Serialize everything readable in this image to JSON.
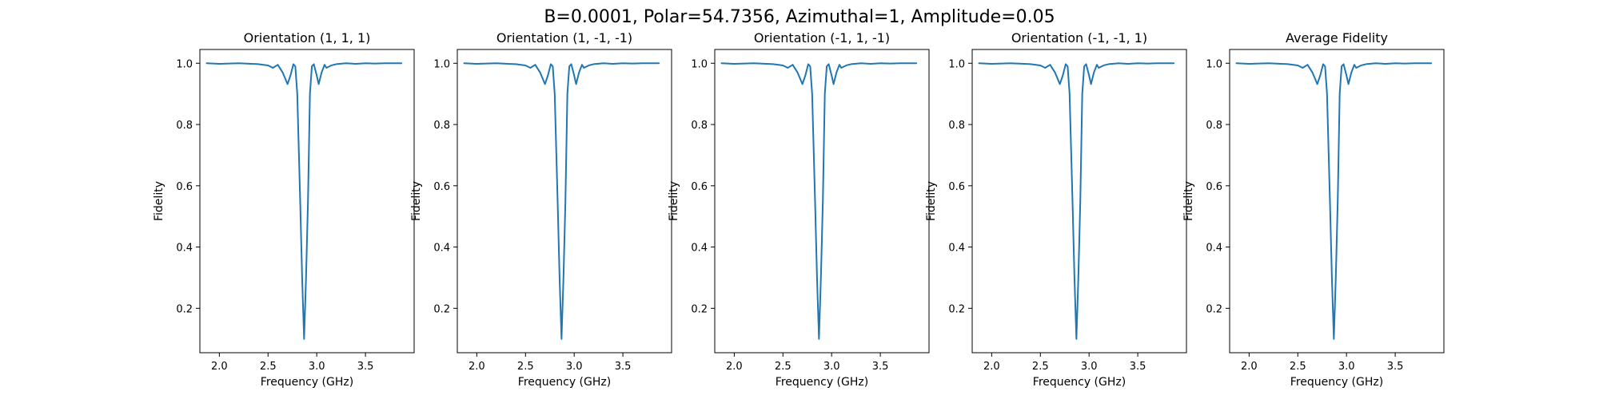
{
  "figure": {
    "suptitle": "B=0.0001, Polar=54.7356, Azimuthal=1, Amplitude=0.05"
  },
  "style": {
    "line_color": "#1f77b4",
    "axis_color": "#000000",
    "background": "#ffffff"
  },
  "chart_data": [
    {
      "type": "line",
      "title": "Orientation (1, 1, 1)",
      "xlabel": "Frequency (GHz)",
      "ylabel": "Fidelity",
      "xlim": [
        1.8,
        4.0
      ],
      "ylim": [
        0.055,
        1.045
      ],
      "xticks": [
        "2.0",
        "2.5",
        "3.0",
        "3.5"
      ],
      "yticks": [
        "0.2",
        "0.4",
        "0.6",
        "0.8",
        "1.0"
      ],
      "grid": false,
      "series": [
        {
          "x": [
            1.87,
            2.0,
            2.2,
            2.4,
            2.5,
            2.55,
            2.6,
            2.65,
            2.7,
            2.73,
            2.76,
            2.78,
            2.8,
            2.83,
            2.85,
            2.87,
            2.89,
            2.91,
            2.93,
            2.95,
            2.97,
            3.0,
            3.02,
            3.05,
            3.08,
            3.1,
            3.15,
            3.2,
            3.3,
            3.4,
            3.5,
            3.6,
            3.7,
            3.87
          ],
          "y": [
            1.0,
            0.998,
            1.0,
            0.997,
            0.993,
            0.985,
            0.995,
            0.97,
            0.932,
            0.96,
            0.997,
            0.99,
            0.9,
            0.55,
            0.3,
            0.1,
            0.3,
            0.55,
            0.9,
            0.99,
            0.997,
            0.96,
            0.932,
            0.97,
            0.995,
            0.985,
            0.993,
            0.997,
            1.0,
            0.998,
            1.0,
            0.999,
            1.0,
            1.0
          ]
        }
      ]
    },
    {
      "type": "line",
      "title": "Orientation (1, -1, -1)",
      "xlabel": "Frequency (GHz)",
      "ylabel": "Fidelity",
      "xlim": [
        1.8,
        4.0
      ],
      "ylim": [
        0.055,
        1.045
      ],
      "xticks": [
        "2.0",
        "2.5",
        "3.0",
        "3.5"
      ],
      "yticks": [
        "0.2",
        "0.4",
        "0.6",
        "0.8",
        "1.0"
      ],
      "grid": false,
      "series": [
        {
          "x": [
            1.87,
            2.0,
            2.2,
            2.4,
            2.5,
            2.55,
            2.6,
            2.65,
            2.7,
            2.73,
            2.76,
            2.78,
            2.8,
            2.83,
            2.85,
            2.87,
            2.89,
            2.91,
            2.93,
            2.95,
            2.97,
            3.0,
            3.02,
            3.05,
            3.08,
            3.1,
            3.15,
            3.2,
            3.3,
            3.4,
            3.5,
            3.6,
            3.7,
            3.87
          ],
          "y": [
            1.0,
            0.998,
            1.0,
            0.997,
            0.993,
            0.985,
            0.995,
            0.97,
            0.932,
            0.96,
            0.997,
            0.99,
            0.9,
            0.55,
            0.3,
            0.1,
            0.3,
            0.55,
            0.9,
            0.99,
            0.997,
            0.96,
            0.932,
            0.97,
            0.995,
            0.985,
            0.993,
            0.997,
            1.0,
            0.998,
            1.0,
            0.999,
            1.0,
            1.0
          ]
        }
      ]
    },
    {
      "type": "line",
      "title": "Orientation (-1, 1, -1)",
      "xlabel": "Frequency (GHz)",
      "ylabel": "Fidelity",
      "xlim": [
        1.8,
        4.0
      ],
      "ylim": [
        0.055,
        1.045
      ],
      "xticks": [
        "2.0",
        "2.5",
        "3.0",
        "3.5"
      ],
      "yticks": [
        "0.2",
        "0.4",
        "0.6",
        "0.8",
        "1.0"
      ],
      "grid": false,
      "series": [
        {
          "x": [
            1.87,
            2.0,
            2.2,
            2.4,
            2.5,
            2.55,
            2.6,
            2.65,
            2.7,
            2.73,
            2.76,
            2.78,
            2.8,
            2.83,
            2.85,
            2.87,
            2.89,
            2.91,
            2.93,
            2.95,
            2.97,
            3.0,
            3.02,
            3.05,
            3.08,
            3.1,
            3.15,
            3.2,
            3.3,
            3.4,
            3.5,
            3.6,
            3.7,
            3.87
          ],
          "y": [
            1.0,
            0.998,
            1.0,
            0.997,
            0.993,
            0.985,
            0.995,
            0.97,
            0.932,
            0.96,
            0.997,
            0.99,
            0.9,
            0.55,
            0.3,
            0.1,
            0.3,
            0.55,
            0.9,
            0.99,
            0.997,
            0.96,
            0.932,
            0.97,
            0.995,
            0.985,
            0.993,
            0.997,
            1.0,
            0.998,
            1.0,
            0.999,
            1.0,
            1.0
          ]
        }
      ]
    },
    {
      "type": "line",
      "title": "Orientation (-1, -1, 1)",
      "xlabel": "Frequency (GHz)",
      "ylabel": "Fidelity",
      "xlim": [
        1.8,
        4.0
      ],
      "ylim": [
        0.055,
        1.045
      ],
      "xticks": [
        "2.0",
        "2.5",
        "3.0",
        "3.5"
      ],
      "yticks": [
        "0.2",
        "0.4",
        "0.6",
        "0.8",
        "1.0"
      ],
      "grid": false,
      "series": [
        {
          "x": [
            1.87,
            2.0,
            2.2,
            2.4,
            2.5,
            2.55,
            2.6,
            2.65,
            2.7,
            2.73,
            2.76,
            2.78,
            2.8,
            2.83,
            2.85,
            2.87,
            2.89,
            2.91,
            2.93,
            2.95,
            2.97,
            3.0,
            3.02,
            3.05,
            3.08,
            3.1,
            3.15,
            3.2,
            3.3,
            3.4,
            3.5,
            3.6,
            3.7,
            3.87
          ],
          "y": [
            1.0,
            0.998,
            1.0,
            0.997,
            0.993,
            0.985,
            0.995,
            0.97,
            0.932,
            0.96,
            0.997,
            0.99,
            0.9,
            0.55,
            0.3,
            0.1,
            0.3,
            0.55,
            0.9,
            0.99,
            0.997,
            0.96,
            0.932,
            0.97,
            0.995,
            0.985,
            0.993,
            0.997,
            1.0,
            0.998,
            1.0,
            0.999,
            1.0,
            1.0
          ]
        }
      ]
    },
    {
      "type": "line",
      "title": "Average Fidelity",
      "xlabel": "Frequency (GHz)",
      "ylabel": "Fidelity",
      "xlim": [
        1.8,
        4.0
      ],
      "ylim": [
        0.055,
        1.045
      ],
      "xticks": [
        "2.0",
        "2.5",
        "3.0",
        "3.5"
      ],
      "yticks": [
        "0.2",
        "0.4",
        "0.6",
        "0.8",
        "1.0"
      ],
      "grid": false,
      "series": [
        {
          "x": [
            1.87,
            2.0,
            2.2,
            2.4,
            2.5,
            2.55,
            2.6,
            2.65,
            2.7,
            2.73,
            2.76,
            2.78,
            2.8,
            2.83,
            2.85,
            2.87,
            2.89,
            2.91,
            2.93,
            2.95,
            2.97,
            3.0,
            3.02,
            3.05,
            3.08,
            3.1,
            3.15,
            3.2,
            3.3,
            3.4,
            3.5,
            3.6,
            3.7,
            3.87
          ],
          "y": [
            1.0,
            0.998,
            1.0,
            0.997,
            0.993,
            0.985,
            0.995,
            0.97,
            0.932,
            0.96,
            0.997,
            0.99,
            0.9,
            0.55,
            0.3,
            0.1,
            0.3,
            0.55,
            0.9,
            0.99,
            0.997,
            0.96,
            0.932,
            0.97,
            0.995,
            0.985,
            0.993,
            0.997,
            1.0,
            0.998,
            1.0,
            0.999,
            1.0,
            1.0
          ]
        }
      ]
    }
  ]
}
